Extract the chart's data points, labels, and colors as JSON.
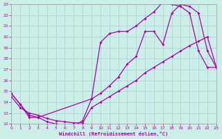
{
  "xlabel": "Windchill (Refroidissement éolien,°C)",
  "xlim": [
    0,
    23
  ],
  "ylim": [
    12,
    23
  ],
  "xticks": [
    0,
    1,
    2,
    3,
    4,
    5,
    6,
    7,
    8,
    9,
    10,
    11,
    12,
    13,
    14,
    15,
    16,
    17,
    18,
    19,
    20,
    21,
    22,
    23
  ],
  "yticks": [
    12,
    13,
    14,
    15,
    16,
    17,
    18,
    19,
    20,
    21,
    22,
    23
  ],
  "bg_color": "#cceee8",
  "line_color": "#aa00aa",
  "grid_color": "#aacccc",
  "curve1_x": [
    0,
    1,
    2,
    3,
    4,
    5,
    6,
    7,
    8,
    9,
    10,
    11,
    12,
    13,
    14,
    15,
    16,
    17,
    18,
    19,
    20,
    21,
    22,
    23
  ],
  "curve1_y": [
    14.8,
    13.8,
    12.6,
    12.6,
    12.2,
    12.0,
    11.9,
    11.8,
    12.3,
    14.3,
    14.8,
    15.5,
    16.3,
    17.5,
    18.2,
    20.5,
    20.5,
    19.3,
    22.2,
    23.0,
    22.8,
    22.2,
    18.7,
    17.2
  ],
  "curve2_x": [
    0,
    1,
    2,
    3,
    4,
    5,
    6,
    7,
    8,
    9,
    10,
    11,
    12,
    13,
    14,
    15,
    16,
    17,
    18,
    19,
    20,
    21,
    22,
    23
  ],
  "curve2_y": [
    14.5,
    13.5,
    13.0,
    12.8,
    12.5,
    12.3,
    12.2,
    12.1,
    12.1,
    13.5,
    14.0,
    14.5,
    15.0,
    15.5,
    16.0,
    16.7,
    17.2,
    17.7,
    18.2,
    18.7,
    19.2,
    19.6,
    20.0,
    17.2
  ],
  "curve3_x": [
    0,
    1,
    2,
    3,
    9,
    10,
    11,
    12,
    13,
    14,
    15,
    16,
    17,
    18,
    19,
    20,
    21,
    22,
    23
  ],
  "curve3_y": [
    14.8,
    13.8,
    12.8,
    12.6,
    14.3,
    19.5,
    20.3,
    20.5,
    20.5,
    21.0,
    21.7,
    22.3,
    23.2,
    23.0,
    22.8,
    22.2,
    18.7,
    17.2,
    17.2
  ]
}
